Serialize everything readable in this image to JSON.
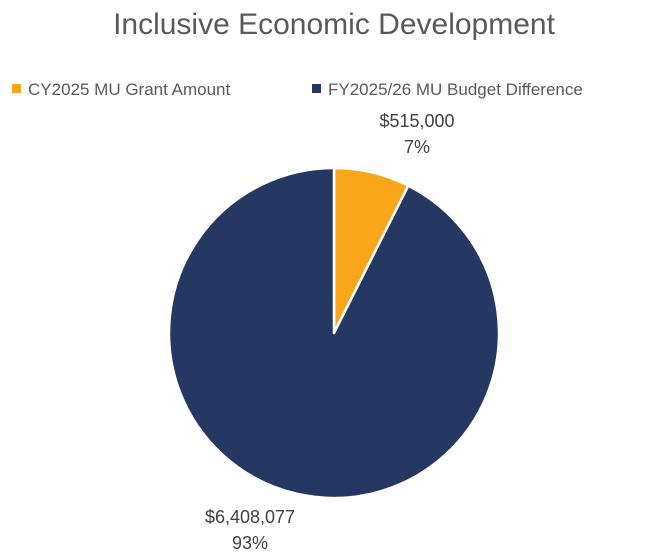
{
  "chart_data": {
    "type": "pie",
    "title": "Inclusive Economic Development",
    "legend_position": "top",
    "slices": [
      {
        "name": "CY2025 MU Grant Amount",
        "value": 515000,
        "value_label": "$515,000",
        "percent_label": "7%",
        "color": "#F9A61A"
      },
      {
        "name": "FY2025/26 MU Budget Difference",
        "value": 6408077,
        "value_label": "$6,408,077",
        "percent_label": "93%",
        "color": "#253862"
      }
    ]
  }
}
